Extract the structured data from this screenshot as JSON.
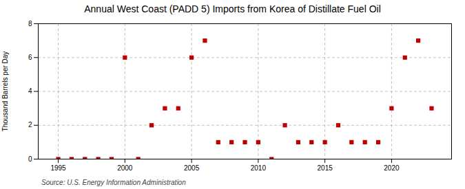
{
  "chart_data": {
    "type": "scatter",
    "title": "Annual West Coast (PADD 5) Imports from Korea of Distillate Fuel Oil",
    "ylabel": "Thousand Barrels per Day",
    "annotations": [
      "Source: U.S. Energy Information Administration"
    ],
    "x": [
      1995,
      1996,
      1997,
      1998,
      1999,
      2000,
      2001,
      2002,
      2003,
      2004,
      2005,
      2006,
      2007,
      2008,
      2009,
      2010,
      2011,
      2012,
      2013,
      2014,
      2015,
      2016,
      2017,
      2018,
      2019,
      2020,
      2021,
      2022,
      2023
    ],
    "values": [
      0,
      0,
      0,
      0,
      0,
      6,
      0,
      2,
      3,
      3,
      6,
      7,
      1,
      1,
      1,
      1,
      0,
      2,
      1,
      1,
      1,
      2,
      1,
      1,
      1,
      3,
      6,
      7,
      3
    ],
    "color": "#c00000",
    "marker": "square",
    "xlim": [
      1993.5,
      2024.5
    ],
    "xticks": [
      1995,
      2000,
      2005,
      2010,
      2015,
      2020
    ],
    "ylim": [
      0,
      8
    ],
    "yticks": [
      0,
      2,
      4,
      6,
      8
    ],
    "grid": true
  }
}
